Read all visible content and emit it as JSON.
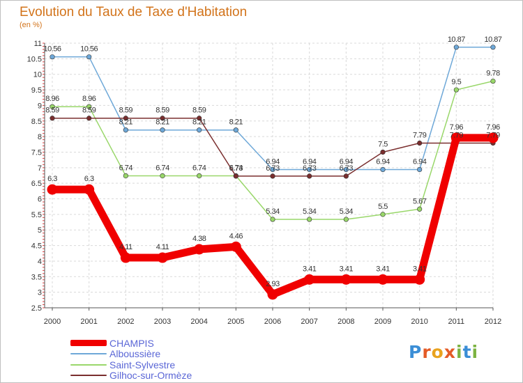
{
  "title": "Evolution du Taux de Taxe d'Habitation",
  "subtitle": "(en %)",
  "logo": {
    "text": "Proxiti",
    "letters": [
      "P",
      "r",
      "o",
      "x",
      "i",
      "t",
      "i"
    ],
    "colors": [
      "#3b8ed6",
      "#e45b27",
      "#e9a31f",
      "#e45b27",
      "#7cb342",
      "#3b8ed6",
      "#7cb342"
    ]
  },
  "chart_data": {
    "type": "line",
    "x": [
      "2000",
      "2001",
      "2002",
      "2003",
      "2004",
      "2005",
      "2006",
      "2007",
      "2008",
      "2009",
      "2010",
      "2011",
      "2012"
    ],
    "ylim": [
      2.5,
      11
    ],
    "yticks": [
      "2.5",
      "3",
      "3.5",
      "4",
      "4.5",
      "5",
      "5.5",
      "6",
      "6.5",
      "7",
      "7.5",
      "8",
      "8.5",
      "9",
      "9.5",
      "10",
      "10.5",
      "11"
    ],
    "grid": true,
    "legend_position": "bottom-left",
    "series": [
      {
        "name": "CHAMPIS",
        "color": "#f00000",
        "values": [
          6.3,
          6.3,
          4.11,
          4.11,
          4.38,
          4.46,
          2.93,
          3.41,
          3.41,
          3.41,
          3.41,
          7.96,
          7.96
        ],
        "labels": [
          "6.3",
          "6.3",
          "4.11",
          "4.11",
          "4.38",
          "4.46",
          "2.93",
          "3.41",
          "3.41",
          "3.41",
          "3.41",
          "7.96",
          "7.96"
        ]
      },
      {
        "name": "Alboussière",
        "color": "#6ea8d8",
        "values": [
          10.56,
          10.56,
          8.21,
          8.21,
          8.21,
          8.21,
          6.94,
          6.94,
          6.94,
          6.94,
          6.94,
          10.87,
          10.87
        ],
        "labels": [
          "10.56",
          "10.56",
          "8.21",
          "8.21",
          "8.21",
          "8.21",
          "6.94",
          "6.94",
          "6.94",
          "6.94",
          "6.94",
          "10.87",
          "10.87"
        ]
      },
      {
        "name": "Saint-Sylvestre",
        "color": "#99d76a",
        "values": [
          8.96,
          8.96,
          6.74,
          6.74,
          6.74,
          6.74,
          5.34,
          5.34,
          5.34,
          5.5,
          5.67,
          9.5,
          9.78
        ],
        "labels": [
          "8.96",
          "8.96",
          "6.74",
          "6.74",
          "6.74",
          "6.74",
          "5.34",
          "5.34",
          "5.34",
          "5.5",
          "5.67",
          "9.5",
          "9.78"
        ]
      },
      {
        "name": "Gilhoc-sur-Ormèze",
        "color": "#7a2e2e",
        "values": [
          8.59,
          8.59,
          8.59,
          8.59,
          8.59,
          6.73,
          6.73,
          6.73,
          6.73,
          7.5,
          7.79,
          7.79,
          7.79
        ],
        "labels": [
          "8.59",
          "8.59",
          "8.59",
          "8.59",
          "8.59",
          "6.73",
          "6.73",
          "6.73",
          "6.73",
          "7.5",
          "7.79",
          "7.79",
          "7.79"
        ]
      }
    ]
  }
}
